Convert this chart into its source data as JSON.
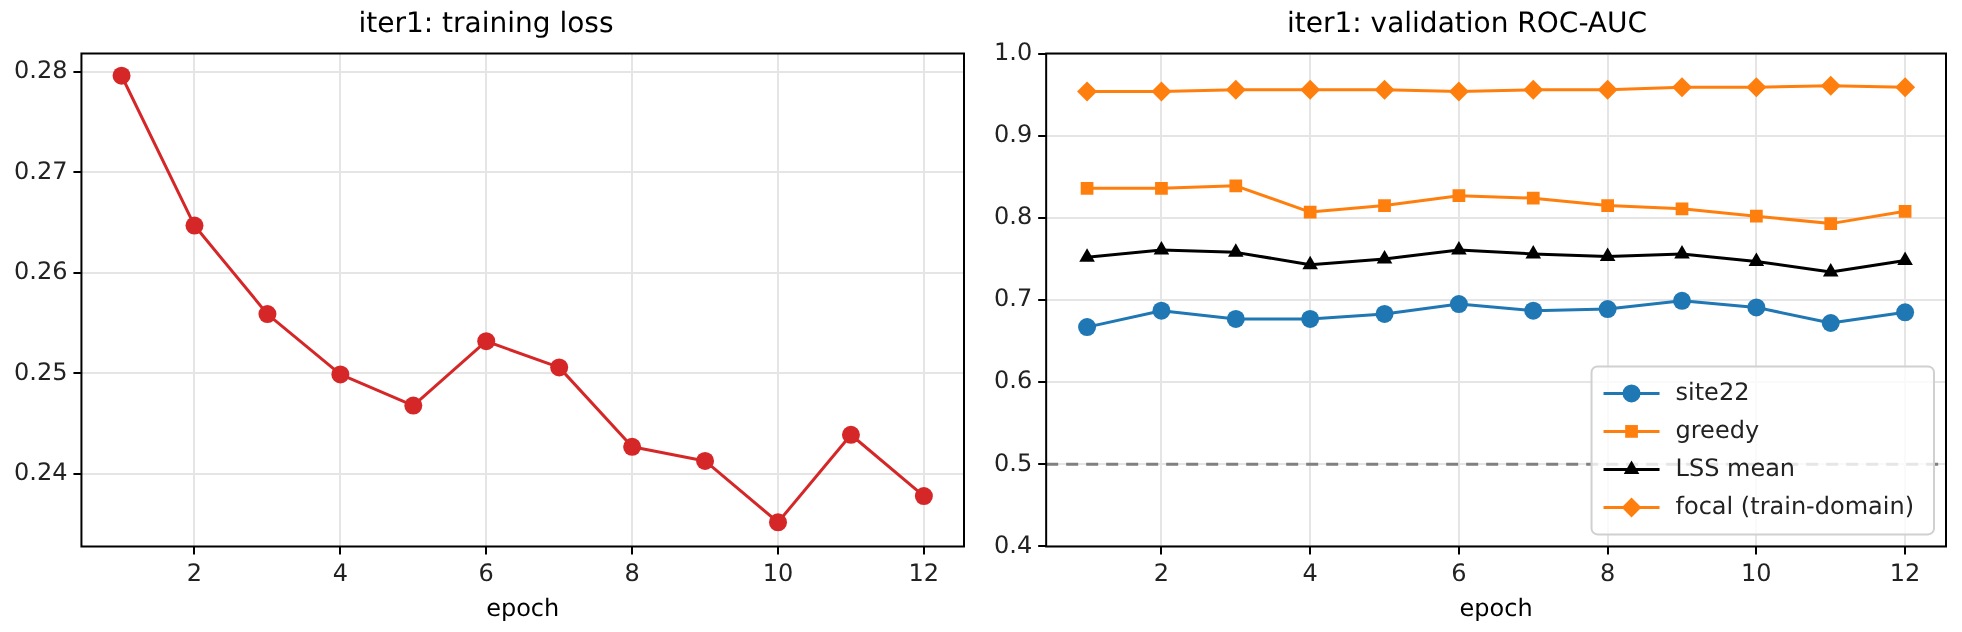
{
  "chart_data": [
    {
      "type": "line",
      "title": "iter1: training loss",
      "xlabel": "epoch",
      "x": [
        1,
        2,
        3,
        4,
        5,
        6,
        7,
        8,
        9,
        10,
        11,
        12
      ],
      "xlim": [
        0.45,
        12.55
      ],
      "xticks": [
        2,
        4,
        6,
        8,
        10,
        12
      ],
      "ylim": [
        0.2328,
        0.2818
      ],
      "yticks": [
        0.24,
        0.25,
        0.26,
        0.27,
        0.28
      ],
      "grid": true,
      "legend": false,
      "marker": "circle",
      "series": [
        {
          "color": "#d62728",
          "values": [
            0.2796,
            0.2647,
            0.2559,
            0.2499,
            0.2468,
            0.2532,
            0.2506,
            0.2427,
            0.2413,
            0.2352,
            0.2439,
            0.2378
          ]
        }
      ]
    },
    {
      "type": "line",
      "title": "iter1: validation ROC-AUC",
      "xlabel": "epoch",
      "x": [
        1,
        2,
        3,
        4,
        5,
        6,
        7,
        8,
        9,
        10,
        11,
        12
      ],
      "xlim": [
        0.45,
        12.55
      ],
      "xticks": [
        2,
        4,
        6,
        8,
        10,
        12
      ],
      "ylim": [
        0.4,
        1.0
      ],
      "yticks": [
        0.4,
        0.5,
        0.6,
        0.7,
        0.8,
        0.9,
        {
          "value": 1.0,
          "label": "1.0"
        }
      ],
      "grid": true,
      "legend": "bottom right",
      "ref_lines": [
        {
          "axis": "y",
          "value": 0.5,
          "color": "#808080",
          "line_style": "dashed"
        }
      ],
      "series": [
        {
          "name": "site22",
          "color": "#1f77b4",
          "marker": "circle",
          "values": [
            0.667,
            0.687,
            0.677,
            0.677,
            0.683,
            0.695,
            0.687,
            0.689,
            0.699,
            0.691,
            0.672,
            0.685
          ]
        },
        {
          "name": "greedy",
          "color": "#ff7f0e",
          "marker": "square",
          "values": [
            0.836,
            0.836,
            0.839,
            0.807,
            0.815,
            0.827,
            0.824,
            0.815,
            0.811,
            0.802,
            0.793,
            0.808
          ]
        },
        {
          "name": "LSS mean",
          "color": "#000000",
          "marker": "triangle",
          "values": [
            0.752,
            0.761,
            0.758,
            0.743,
            0.75,
            0.761,
            0.756,
            0.753,
            0.756,
            0.747,
            0.734,
            0.748
          ]
        },
        {
          "name": "focal (train-domain)",
          "color": "#ff7f0e",
          "marker": "diamond",
          "values": [
            0.954,
            0.954,
            0.956,
            0.956,
            0.956,
            0.954,
            0.956,
            0.956,
            0.959,
            0.959,
            0.961,
            0.959
          ]
        }
      ]
    }
  ]
}
